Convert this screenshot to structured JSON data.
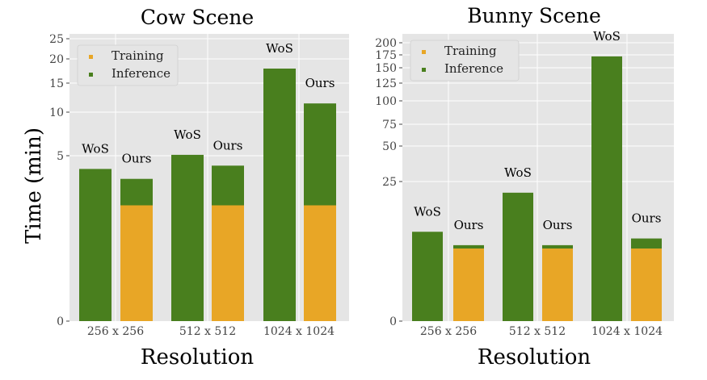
{
  "ylabel": "Time (min)",
  "colors": {
    "training": "#e8a626",
    "inference": "#497f1e",
    "panel_bg": "#e5e5e5",
    "grid": "#ffffff"
  },
  "chart_data": [
    {
      "type": "bar",
      "title": "Cow Scene",
      "xlabel": "Resolution",
      "ylabel": "Time (min)",
      "y_scale": "nonlinear (compressed above 5)",
      "ylim": [
        0,
        25
      ],
      "yticks": [
        0,
        5,
        10,
        15,
        20,
        25
      ],
      "categories": [
        "256 x 256",
        "512 x 512",
        "1024 x 1024"
      ],
      "legend": [
        "Training",
        "Inference"
      ],
      "bars": [
        {
          "category": "256 x 256",
          "method": "WoS",
          "training": 0,
          "inference": 4.6
        },
        {
          "category": "256 x 256",
          "method": "Ours",
          "training": 3.5,
          "inference": 0.8
        },
        {
          "category": "512 x 512",
          "method": "WoS",
          "training": 0,
          "inference": 5.1
        },
        {
          "category": "512 x 512",
          "method": "Ours",
          "training": 3.5,
          "inference": 1.2
        },
        {
          "category": "1024 x 1024",
          "method": "WoS",
          "training": 0,
          "inference": 18.0
        },
        {
          "category": "1024 x 1024",
          "method": "Ours",
          "training": 3.5,
          "inference": 8.0
        }
      ]
    },
    {
      "type": "bar",
      "title": "Bunny Scene",
      "xlabel": "Resolution",
      "ylabel": "",
      "y_scale": "nonlinear (compressed above 25)",
      "ylim": [
        0,
        200
      ],
      "yticks": [
        0,
        25,
        50,
        75,
        100,
        125,
        150,
        175,
        200
      ],
      "categories": [
        "256 x 256",
        "512 x 512",
        "1024 x 1024"
      ],
      "legend": [
        "Training",
        "Inference"
      ],
      "bars": [
        {
          "category": "256 x 256",
          "method": "WoS",
          "training": 0,
          "inference": 16.0
        },
        {
          "category": "256 x 256",
          "method": "Ours",
          "training": 13.0,
          "inference": 0.6
        },
        {
          "category": "512 x 512",
          "method": "WoS",
          "training": 0,
          "inference": 23.0
        },
        {
          "category": "512 x 512",
          "method": "Ours",
          "training": 13.0,
          "inference": 0.6
        },
        {
          "category": "1024 x 1024",
          "method": "WoS",
          "training": 0,
          "inference": 172.0
        },
        {
          "category": "1024 x 1024",
          "method": "Ours",
          "training": 13.0,
          "inference": 1.8
        }
      ]
    }
  ]
}
